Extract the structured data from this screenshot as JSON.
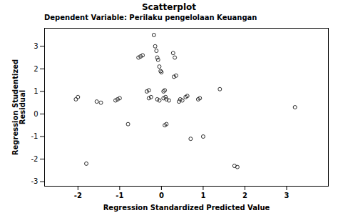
{
  "chart_data": {
    "type": "scatter",
    "title": "Scatterplot",
    "subtitle": "Dependent Variable: Perilaku pengelolaan Keuangan",
    "xlabel": "Regression Standardized Predicted Value",
    "ylabel": "Regression Studentized\nResidual",
    "xlim": [
      -2.8,
      4.0
    ],
    "ylim": [
      -3.2,
      3.8
    ],
    "xticks": [
      -2,
      -1,
      0,
      1,
      2,
      3
    ],
    "yticks": [
      -3,
      -2,
      -1,
      0,
      1,
      2,
      3
    ],
    "grid": false,
    "color": "#1a1a1a",
    "marker": "circle",
    "x": [
      -2.0,
      -2.05,
      -1.8,
      -1.45,
      -1.55,
      -1.1,
      -1.05,
      -1.0,
      -0.8,
      -0.55,
      -0.5,
      -0.45,
      -0.35,
      -0.3,
      -0.3,
      -0.25,
      -0.18,
      -0.15,
      -0.12,
      -0.1,
      -0.08,
      -0.05,
      -0.02,
      0.0,
      -0.1,
      -0.05,
      0.05,
      0.08,
      0.05,
      0.1,
      0.12,
      0.18,
      0.08,
      0.12,
      0.28,
      0.32,
      0.3,
      0.35,
      0.42,
      0.45,
      0.5,
      0.58,
      0.62,
      0.7,
      0.88,
      0.92,
      1.0,
      1.4,
      1.75,
      1.82,
      3.2
    ],
    "values": [
      0.75,
      0.65,
      -2.2,
      0.5,
      0.55,
      0.6,
      0.65,
      0.7,
      -0.45,
      2.5,
      2.55,
      2.6,
      1.0,
      1.05,
      0.7,
      0.75,
      3.5,
      3.0,
      2.8,
      2.5,
      2.4,
      2.1,
      1.9,
      1.85,
      0.65,
      0.6,
      1.0,
      1.05,
      0.7,
      0.75,
      0.65,
      0.6,
      -0.5,
      -0.45,
      2.7,
      2.5,
      1.65,
      1.7,
      0.55,
      0.65,
      0.6,
      0.75,
      0.8,
      -1.1,
      0.65,
      0.7,
      -1.0,
      1.1,
      -2.3,
      -2.35,
      0.3
    ]
  }
}
